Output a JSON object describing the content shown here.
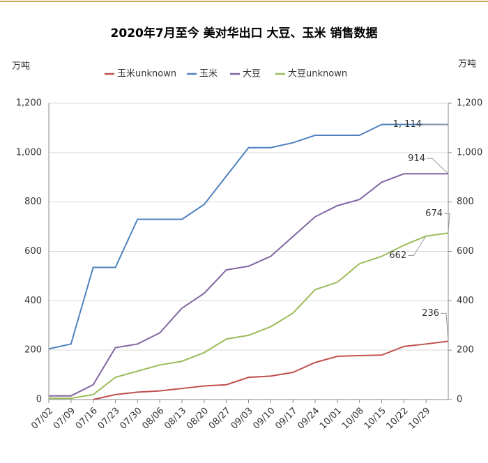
{
  "chart_data": {
    "type": "line",
    "title": "2020年7月至今 美对华出口 大豆、玉米 销售数据",
    "y_label": "万吨",
    "y2_label": "万吨",
    "categories": [
      "07/02",
      "07/09",
      "07/16",
      "07/23",
      "07/30",
      "08/06",
      "08/13",
      "08/20",
      "08/27",
      "09/03",
      "09/10",
      "09/17",
      "09/24",
      "10/01",
      "10/08",
      "10/15",
      "10/22",
      "10/29",
      null
    ],
    "series": [
      {
        "name": "玉米unknown",
        "color": "#c0504d",
        "values": [
          null,
          null,
          0,
          20,
          30,
          35,
          45,
          55,
          60,
          90,
          95,
          110,
          150,
          175,
          178,
          180,
          215,
          225,
          236
        ],
        "value_labels": [
          null,
          null,
          null,
          null,
          null,
          null,
          null,
          null,
          null,
          null,
          null,
          null,
          null,
          null,
          null,
          null,
          null,
          null,
          "236"
        ]
      },
      {
        "name": "玉米",
        "color": "#4f81bd",
        "values": [
          205,
          225,
          535,
          535,
          730,
          730,
          730,
          790,
          905,
          1020,
          1020,
          1040,
          1070,
          1070,
          1070,
          1114,
          1114,
          1114,
          1114
        ],
        "value_labels": [
          null,
          null,
          null,
          null,
          null,
          null,
          null,
          null,
          null,
          null,
          null,
          null,
          null,
          null,
          null,
          null,
          null,
          null,
          "1, 114"
        ]
      },
      {
        "name": "大豆",
        "color": "#8064a2",
        "values": [
          15,
          15,
          60,
          210,
          225,
          270,
          370,
          430,
          525,
          540,
          580,
          660,
          740,
          785,
          810,
          880,
          914,
          914,
          914
        ],
        "value_labels": [
          null,
          null,
          null,
          null,
          null,
          null,
          null,
          null,
          null,
          null,
          null,
          null,
          null,
          null,
          null,
          null,
          null,
          null,
          "914"
        ]
      },
      {
        "name": "大豆unknown",
        "color": "#9bbb59",
        "values": [
          5,
          5,
          20,
          90,
          115,
          140,
          155,
          190,
          245,
          260,
          295,
          350,
          445,
          475,
          550,
          580,
          625,
          662,
          674
        ],
        "value_labels": [
          null,
          null,
          null,
          null,
          null,
          null,
          null,
          null,
          null,
          null,
          null,
          null,
          null,
          null,
          null,
          null,
          null,
          "662",
          "674"
        ]
      }
    ],
    "ylim": [
      0,
      1200
    ],
    "yticks": [
      0,
      200,
      400,
      600,
      800,
      {
        "value": 1000,
        "label": "1,000"
      },
      {
        "value": 1200,
        "label": "1,200"
      }
    ],
    "y2lim": [
      0,
      1200
    ],
    "y2ticks": [
      0,
      200,
      400,
      600,
      800,
      {
        "value": 1000,
        "label": "1,000"
      },
      {
        "value": 1200,
        "label": "1,200"
      }
    ],
    "grid": true,
    "legend": "top"
  }
}
